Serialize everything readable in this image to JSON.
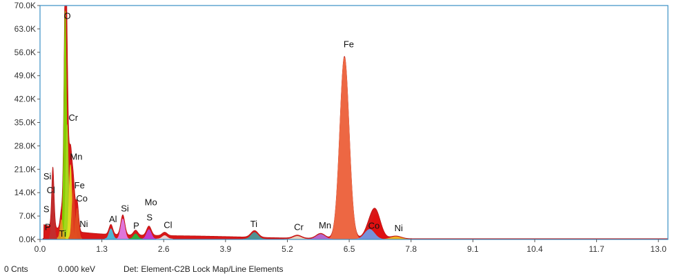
{
  "status": {
    "counts": "0 Cnts",
    "energy": "0.000 keV",
    "detector": "Det: Element-C2B Lock Map/Line Elements"
  },
  "chart_data": {
    "type": "area",
    "title": "",
    "xlabel": "",
    "ylabel": "",
    "xlim": [
      0.0,
      13.2
    ],
    "ylim": [
      0,
      70000
    ],
    "grid": false,
    "x_ticks": [
      "0.0",
      "1.3",
      "2.6",
      "3.9",
      "5.2",
      "6.5",
      "7.8",
      "9.1",
      "10.4",
      "11.7",
      "13.0"
    ],
    "y_ticks": [
      "0.0K",
      "7.0K",
      "14.0K",
      "21.0K",
      "28.0K",
      "35.0K",
      "42.0K",
      "49.0K",
      "56.0K",
      "63.0K",
      "70.0K"
    ],
    "spectrum_color": "#d81818",
    "frame_color": "#3a8fc4",
    "peaks": [
      {
        "element": "O",
        "energy_kev": 0.53,
        "counts": 68000,
        "color": "#7ee000"
      },
      {
        "element": "Fe",
        "energy_kev": 6.4,
        "counts": 54500,
        "color": "#f07048"
      },
      {
        "element": "Cr",
        "energy_kev": 0.57,
        "counts": 34000,
        "color": "#a8d820"
      },
      {
        "element": "Mn",
        "energy_kev": 0.64,
        "counts": 22000,
        "color": "#e0e020"
      },
      {
        "element": "Si",
        "energy_kev": 0.27,
        "counts": 18000,
        "color": "#c03030"
      },
      {
        "element": "Fe",
        "energy_kev": 0.7,
        "counts": 14500,
        "color": "#e04020"
      },
      {
        "element": "Co",
        "energy_kev": 0.78,
        "counts": 9000,
        "color": "#e05020"
      },
      {
        "element": "Ti",
        "energy_kev": 0.45,
        "counts": 5500,
        "color": "#e0a020"
      },
      {
        "element": "Mo",
        "energy_kev": 2.29,
        "counts": 2800,
        "color": "#c040e0"
      },
      {
        "element": "Si",
        "energy_kev": 1.74,
        "counts": 6000,
        "color": "#e080f0"
      },
      {
        "element": "Al",
        "energy_kev": 1.49,
        "counts": 3000,
        "color": "#40c8e8"
      },
      {
        "element": "P",
        "energy_kev": 2.01,
        "counts": 1500,
        "color": "#20c040"
      },
      {
        "element": "Cl",
        "energy_kev": 2.62,
        "counts": 1000,
        "color": "#e8e8e8"
      },
      {
        "element": "Ti",
        "energy_kev": 4.51,
        "counts": 2000,
        "color": "#40a0a0"
      },
      {
        "element": "Cr",
        "energy_kev": 5.41,
        "counts": 900,
        "color": "#e8e8d0"
      },
      {
        "element": "Mn",
        "energy_kev": 5.9,
        "counts": 1500,
        "color": "#b070e0"
      },
      {
        "element": "Fe",
        "energy_kev": 7.06,
        "counts": 7500,
        "color": "#e01010"
      },
      {
        "element": "Co",
        "energy_kev": 6.93,
        "counts": 3000,
        "color": "#6aa0f0"
      },
      {
        "element": "Ni",
        "energy_kev": 7.48,
        "counts": 800,
        "color": "#f0c020"
      }
    ],
    "labels": [
      {
        "text": "O",
        "energy_kev": 0.5,
        "counts": 66000
      },
      {
        "text": "Cr",
        "energy_kev": 0.6,
        "counts": 35500
      },
      {
        "text": "Mn",
        "energy_kev": 0.63,
        "counts": 23800
      },
      {
        "text": "Si",
        "energy_kev": 0.07,
        "counts": 18000
      },
      {
        "text": "Cl",
        "energy_kev": 0.14,
        "counts": 13800
      },
      {
        "text": "Fe",
        "energy_kev": 0.72,
        "counts": 15300
      },
      {
        "text": "Co",
        "energy_kev": 0.76,
        "counts": 11400
      },
      {
        "text": "S",
        "energy_kev": 0.07,
        "counts": 8200
      },
      {
        "text": "P",
        "energy_kev": 0.1,
        "counts": 2800
      },
      {
        "text": "Ti",
        "energy_kev": 0.4,
        "counts": 800
      },
      {
        "text": "Ni",
        "energy_kev": 0.83,
        "counts": 3700
      },
      {
        "text": "Al",
        "energy_kev": 1.45,
        "counts": 5200
      },
      {
        "text": "Si",
        "energy_kev": 1.7,
        "counts": 8400
      },
      {
        "text": "Mo",
        "energy_kev": 2.2,
        "counts": 10200
      },
      {
        "text": "S",
        "energy_kev": 2.24,
        "counts": 5700
      },
      {
        "text": "P",
        "energy_kev": 1.96,
        "counts": 3200
      },
      {
        "text": "Cl",
        "energy_kev": 2.6,
        "counts": 3400
      },
      {
        "text": "Ti",
        "energy_kev": 4.42,
        "counts": 3700
      },
      {
        "text": "Cr",
        "energy_kev": 5.34,
        "counts": 2800
      },
      {
        "text": "Mn",
        "energy_kev": 5.86,
        "counts": 3300
      },
      {
        "text": "Fe",
        "energy_kev": 6.38,
        "counts": 57500
      },
      {
        "text": "Co",
        "energy_kev": 6.9,
        "counts": 3200
      },
      {
        "text": "Ni",
        "energy_kev": 7.45,
        "counts": 2500
      }
    ]
  }
}
